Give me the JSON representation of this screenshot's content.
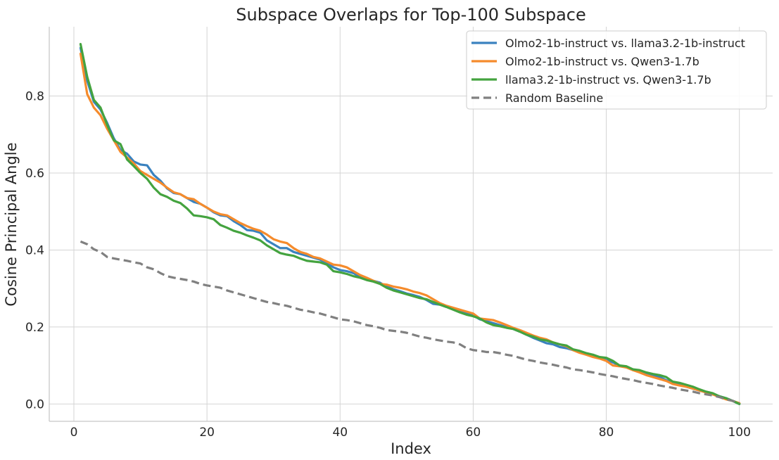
{
  "chart_data": {
    "type": "line",
    "title": "Subspace Overlaps for Top-100 Subspace",
    "xlabel": "Index",
    "ylabel": "Cosine Principal Angle",
    "xlim": [
      -3.7,
      105
    ],
    "ylim": [
      -0.045,
      0.98
    ],
    "xticks": [
      0,
      20,
      40,
      60,
      80,
      100
    ],
    "yticks": [
      0.0,
      0.2,
      0.4,
      0.6,
      0.8
    ],
    "xtick_labels": [
      "0",
      "20",
      "40",
      "60",
      "80",
      "100"
    ],
    "ytick_labels": [
      "0.0",
      "0.2",
      "0.4",
      "0.6",
      "0.8"
    ],
    "grid": true,
    "legend_position": "top-right",
    "series": [
      {
        "name": "Olmo2-1b-instruct vs. llama3.2-1b-instruct",
        "color": "#3a82bf",
        "dash": "solid",
        "x": [
          1,
          2,
          3,
          4,
          5,
          6,
          7,
          8,
          9,
          10,
          11,
          12,
          13,
          14,
          15,
          16,
          17,
          18,
          19,
          20,
          21,
          22,
          23,
          24,
          25,
          26,
          27,
          28,
          29,
          30,
          31,
          32,
          33,
          34,
          35,
          36,
          37,
          38,
          39,
          40,
          41,
          42,
          43,
          44,
          45,
          46,
          47,
          48,
          49,
          50,
          51,
          52,
          53,
          54,
          55,
          56,
          57,
          58,
          59,
          60,
          61,
          62,
          63,
          64,
          65,
          66,
          67,
          68,
          69,
          70,
          71,
          72,
          73,
          74,
          75,
          76,
          77,
          78,
          79,
          80,
          81,
          82,
          83,
          84,
          85,
          86,
          87,
          88,
          89,
          90,
          91,
          92,
          93,
          94,
          95,
          96,
          97,
          98,
          99,
          100
        ],
        "values": [
          0.925,
          0.84,
          0.785,
          0.765,
          0.73,
          0.69,
          0.66,
          0.65,
          0.63,
          0.622,
          0.62,
          0.595,
          0.58,
          0.56,
          0.548,
          0.545,
          0.535,
          0.525,
          0.52,
          0.51,
          0.498,
          0.49,
          0.488,
          0.475,
          0.465,
          0.452,
          0.45,
          0.445,
          0.425,
          0.415,
          0.405,
          0.405,
          0.395,
          0.39,
          0.385,
          0.38,
          0.375,
          0.365,
          0.355,
          0.348,
          0.345,
          0.34,
          0.33,
          0.325,
          0.32,
          0.315,
          0.305,
          0.298,
          0.293,
          0.287,
          0.283,
          0.278,
          0.27,
          0.26,
          0.258,
          0.252,
          0.248,
          0.24,
          0.235,
          0.23,
          0.22,
          0.215,
          0.21,
          0.205,
          0.2,
          0.195,
          0.188,
          0.18,
          0.172,
          0.165,
          0.158,
          0.155,
          0.148,
          0.145,
          0.14,
          0.135,
          0.13,
          0.125,
          0.12,
          0.115,
          0.108,
          0.1,
          0.095,
          0.09,
          0.085,
          0.08,
          0.075,
          0.07,
          0.062,
          0.055,
          0.05,
          0.045,
          0.04,
          0.035,
          0.03,
          0.025,
          0.02,
          0.015,
          0.008,
          0.0
        ]
      },
      {
        "name": "Olmo2-1b-instruct vs. Qwen3-1.7b",
        "color": "#f58b2c",
        "dash": "solid",
        "x": [
          1,
          2,
          3,
          4,
          5,
          6,
          7,
          8,
          9,
          10,
          11,
          12,
          13,
          14,
          15,
          16,
          17,
          18,
          19,
          20,
          21,
          22,
          23,
          24,
          25,
          26,
          27,
          28,
          29,
          30,
          31,
          32,
          33,
          34,
          35,
          36,
          37,
          38,
          39,
          40,
          41,
          42,
          43,
          44,
          45,
          46,
          47,
          48,
          49,
          50,
          51,
          52,
          53,
          54,
          55,
          56,
          57,
          58,
          59,
          60,
          61,
          62,
          63,
          64,
          65,
          66,
          67,
          68,
          69,
          70,
          71,
          72,
          73,
          74,
          75,
          76,
          77,
          78,
          79,
          80,
          81,
          82,
          83,
          84,
          85,
          86,
          87,
          88,
          89,
          90,
          91,
          92,
          93,
          94,
          95,
          96,
          97,
          98,
          99,
          100
        ],
        "values": [
          0.91,
          0.805,
          0.77,
          0.75,
          0.715,
          0.685,
          0.655,
          0.64,
          0.625,
          0.605,
          0.595,
          0.585,
          0.575,
          0.562,
          0.55,
          0.545,
          0.535,
          0.532,
          0.52,
          0.51,
          0.5,
          0.493,
          0.49,
          0.48,
          0.47,
          0.462,
          0.455,
          0.45,
          0.44,
          0.428,
          0.422,
          0.418,
          0.405,
          0.395,
          0.39,
          0.382,
          0.378,
          0.37,
          0.362,
          0.36,
          0.355,
          0.345,
          0.335,
          0.328,
          0.32,
          0.312,
          0.31,
          0.305,
          0.302,
          0.298,
          0.292,
          0.288,
          0.282,
          0.272,
          0.262,
          0.255,
          0.25,
          0.245,
          0.24,
          0.235,
          0.222,
          0.22,
          0.218,
          0.212,
          0.205,
          0.198,
          0.192,
          0.185,
          0.178,
          0.172,
          0.168,
          0.16,
          0.155,
          0.15,
          0.14,
          0.133,
          0.128,
          0.122,
          0.118,
          0.112,
          0.1,
          0.098,
          0.095,
          0.088,
          0.082,
          0.075,
          0.07,
          0.065,
          0.06,
          0.052,
          0.048,
          0.045,
          0.04,
          0.035,
          0.03,
          0.025,
          0.018,
          0.012,
          0.008,
          0.002
        ]
      },
      {
        "name": "llama3.2-1b-instruct vs. Qwen3-1.7b",
        "color": "#44a33f",
        "dash": "solid",
        "x": [
          1,
          2,
          3,
          4,
          5,
          6,
          7,
          8,
          9,
          10,
          11,
          12,
          13,
          14,
          15,
          16,
          17,
          18,
          19,
          20,
          21,
          22,
          23,
          24,
          25,
          26,
          27,
          28,
          29,
          30,
          31,
          32,
          33,
          34,
          35,
          36,
          37,
          38,
          39,
          40,
          41,
          42,
          43,
          44,
          45,
          46,
          47,
          48,
          49,
          50,
          51,
          52,
          53,
          54,
          55,
          56,
          57,
          58,
          59,
          60,
          61,
          62,
          63,
          64,
          65,
          66,
          67,
          68,
          69,
          70,
          71,
          72,
          73,
          74,
          75,
          76,
          77,
          78,
          79,
          80,
          81,
          82,
          83,
          84,
          85,
          86,
          87,
          88,
          89,
          90,
          91,
          92,
          93,
          94,
          95,
          96,
          97,
          98,
          99,
          100
        ],
        "values": [
          0.935,
          0.85,
          0.79,
          0.77,
          0.725,
          0.685,
          0.675,
          0.635,
          0.618,
          0.6,
          0.585,
          0.562,
          0.545,
          0.538,
          0.528,
          0.522,
          0.508,
          0.49,
          0.488,
          0.485,
          0.48,
          0.465,
          0.458,
          0.45,
          0.445,
          0.438,
          0.432,
          0.425,
          0.412,
          0.402,
          0.392,
          0.388,
          0.385,
          0.378,
          0.372,
          0.37,
          0.368,
          0.362,
          0.345,
          0.342,
          0.338,
          0.332,
          0.328,
          0.322,
          0.318,
          0.312,
          0.302,
          0.295,
          0.29,
          0.285,
          0.28,
          0.275,
          0.272,
          0.265,
          0.258,
          0.252,
          0.245,
          0.238,
          0.232,
          0.228,
          0.222,
          0.212,
          0.205,
          0.202,
          0.198,
          0.195,
          0.188,
          0.18,
          0.175,
          0.168,
          0.165,
          0.16,
          0.155,
          0.152,
          0.142,
          0.138,
          0.132,
          0.128,
          0.122,
          0.12,
          0.112,
          0.1,
          0.098,
          0.09,
          0.088,
          0.082,
          0.078,
          0.075,
          0.07,
          0.058,
          0.055,
          0.05,
          0.045,
          0.038,
          0.032,
          0.028,
          0.02,
          0.015,
          0.008,
          0.0
        ]
      },
      {
        "name": "Random Baseline",
        "color": "#808080",
        "dash": "dashed",
        "x": [
          1,
          2,
          3,
          4,
          5,
          6,
          7,
          8,
          9,
          10,
          11,
          12,
          13,
          14,
          15,
          16,
          17,
          18,
          19,
          20,
          21,
          22,
          23,
          24,
          25,
          26,
          27,
          28,
          29,
          30,
          31,
          32,
          33,
          34,
          35,
          36,
          37,
          38,
          39,
          40,
          41,
          42,
          43,
          44,
          45,
          46,
          47,
          48,
          49,
          50,
          51,
          52,
          53,
          54,
          55,
          56,
          57,
          58,
          59,
          60,
          61,
          62,
          63,
          64,
          65,
          66,
          67,
          68,
          69,
          70,
          71,
          72,
          73,
          74,
          75,
          76,
          77,
          78,
          79,
          80,
          81,
          82,
          83,
          84,
          85,
          86,
          87,
          88,
          89,
          90,
          91,
          92,
          93,
          94,
          95,
          96,
          97,
          98,
          99,
          100
        ],
        "values": [
          0.422,
          0.415,
          0.402,
          0.395,
          0.382,
          0.378,
          0.375,
          0.372,
          0.368,
          0.365,
          0.355,
          0.35,
          0.34,
          0.332,
          0.328,
          0.325,
          0.322,
          0.318,
          0.312,
          0.308,
          0.305,
          0.302,
          0.295,
          0.29,
          0.285,
          0.28,
          0.275,
          0.27,
          0.265,
          0.262,
          0.258,
          0.255,
          0.25,
          0.245,
          0.242,
          0.238,
          0.235,
          0.23,
          0.225,
          0.22,
          0.218,
          0.215,
          0.21,
          0.205,
          0.202,
          0.198,
          0.192,
          0.19,
          0.188,
          0.185,
          0.18,
          0.175,
          0.172,
          0.168,
          0.165,
          0.162,
          0.16,
          0.155,
          0.145,
          0.14,
          0.138,
          0.135,
          0.135,
          0.132,
          0.128,
          0.125,
          0.12,
          0.115,
          0.112,
          0.108,
          0.105,
          0.102,
          0.098,
          0.095,
          0.09,
          0.088,
          0.085,
          0.082,
          0.078,
          0.075,
          0.072,
          0.068,
          0.065,
          0.062,
          0.058,
          0.055,
          0.052,
          0.048,
          0.045,
          0.042,
          0.038,
          0.035,
          0.032,
          0.028,
          0.025,
          0.022,
          0.018,
          0.012,
          0.008,
          0.002
        ]
      }
    ]
  }
}
